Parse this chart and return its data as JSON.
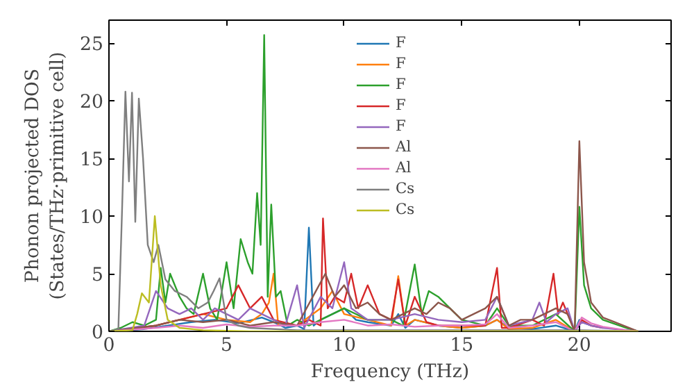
{
  "chart_data": {
    "type": "line",
    "xlabel": "Frequency (THz)",
    "ylabel": "Phonon projected DOS\n(States/THz·primitive cell)",
    "xlim": [
      0,
      23.9
    ],
    "ylim": [
      0,
      27
    ],
    "xticks": [
      0,
      5,
      10,
      15,
      20
    ],
    "yticks": [
      0,
      5,
      10,
      15,
      20,
      25
    ],
    "grid": false,
    "legend": "top",
    "line_style": "solid",
    "marker": "none",
    "series": [
      {
        "name": "F",
        "color": "#1f77b4",
        "x": [
          0,
          1.5,
          2.5,
          3.5,
          4.5,
          5.5,
          6.5,
          7.0,
          7.5,
          8.0,
          8.3,
          8.5,
          8.7,
          9.0,
          9.5,
          10,
          10.5,
          11,
          12,
          12.3,
          12.6,
          13,
          14,
          15,
          16,
          16.5,
          17,
          18,
          19,
          19.8,
          20.0,
          20.1,
          20.5
        ],
        "values": [
          0,
          0.2,
          0.5,
          0.8,
          1,
          0.7,
          1.2,
          0.8,
          0.3,
          0.5,
          0.2,
          9,
          0.5,
          1,
          1.5,
          2,
          1,
          0.8,
          0.5,
          1.5,
          0.3,
          1,
          0.5,
          0.3,
          0.5,
          1,
          0.3,
          0.2,
          0.5,
          0,
          1,
          0.8,
          0.5
        ]
      },
      {
        "name": "F",
        "color": "#ff7f0e",
        "x": [
          0,
          2,
          3,
          4,
          5,
          6,
          6.5,
          6.8,
          7.0,
          7.2,
          8,
          9,
          9.5,
          10,
          11,
          12,
          12.3,
          12.6,
          13,
          14,
          15,
          16,
          16.5,
          17,
          18,
          19,
          19.8
        ],
        "values": [
          0,
          0.5,
          1,
          1.5,
          1,
          0.8,
          1.5,
          2.5,
          5,
          0.5,
          0.5,
          2,
          3.5,
          1.5,
          1,
          0.5,
          4.8,
          0.5,
          1,
          0.5,
          0.3,
          0.5,
          1,
          0.2,
          0.3,
          1,
          0
        ]
      },
      {
        "name": "F",
        "color": "#2ca02c",
        "x": [
          0,
          0.5,
          1,
          1.5,
          2,
          2.2,
          2.4,
          2.6,
          3,
          3.3,
          3.6,
          4,
          4.3,
          4.6,
          5,
          5.3,
          5.6,
          5.9,
          6.1,
          6.3,
          6.45,
          6.6,
          6.75,
          6.9,
          7.1,
          7.3,
          7.6,
          8,
          8.5,
          9,
          9.5,
          10,
          11,
          12,
          12.5,
          13,
          13.3,
          13.6,
          14,
          14.5,
          15,
          16,
          16.5,
          17,
          18,
          19,
          19.8,
          20.0,
          20.2,
          20.5,
          21,
          22,
          22.5
        ],
        "values": [
          0,
          0.3,
          0.8,
          0.5,
          1,
          5.5,
          2.5,
          5,
          3,
          2,
          1.5,
          5,
          2,
          1,
          6,
          2,
          8,
          6,
          5,
          12,
          7.5,
          25.7,
          3,
          11,
          3,
          3.5,
          0.5,
          1,
          0.5,
          1,
          1.5,
          2,
          1,
          1,
          0.5,
          5.8,
          1.5,
          3.5,
          3,
          2,
          1,
          0.5,
          2,
          0.5,
          0.5,
          1.5,
          0,
          10.8,
          4,
          2,
          1,
          0.3,
          0
        ]
      },
      {
        "name": "F",
        "color": "#d62728",
        "x": [
          0,
          2,
          3,
          4,
          5,
          5.5,
          6,
          6.5,
          7,
          8,
          8.5,
          9,
          9.1,
          9.3,
          9.6,
          10,
          10.3,
          10.6,
          11,
          11.5,
          12,
          12.3,
          12.6,
          13,
          13.5,
          14,
          15,
          16,
          16.5,
          16.7,
          17,
          18,
          18.5,
          18.9,
          19.1,
          19.3,
          19.8,
          20.1,
          20.5,
          21
        ],
        "values": [
          0,
          0.5,
          1,
          1.5,
          2,
          4,
          2,
          3,
          1,
          0.5,
          1,
          0.5,
          9.8,
          2,
          3,
          2.5,
          5,
          2,
          4,
          1.5,
          1,
          4.5,
          0.5,
          3,
          0.8,
          0.5,
          0.5,
          0.5,
          5.5,
          0.3,
          0.3,
          1,
          0.5,
          5,
          1.5,
          2.5,
          0,
          1,
          0.5,
          0.3
        ]
      },
      {
        "name": "F",
        "color": "#9467bd",
        "x": [
          0,
          1.5,
          2,
          2.5,
          3,
          3.5,
          4,
          4.5,
          5,
          5.5,
          6,
          7,
          7.5,
          8,
          8.3,
          9,
          9.5,
          10,
          10.3,
          11,
          12,
          13,
          14,
          15,
          16,
          16.5,
          17,
          18,
          18.3,
          18.6,
          19,
          19.5,
          19.8,
          20.1,
          20.5,
          21,
          22,
          22.5
        ],
        "values": [
          0,
          0.5,
          3.5,
          2,
          1.5,
          2,
          1,
          2,
          1.5,
          1,
          2,
          1,
          0.5,
          4,
          0.3,
          3,
          2,
          6,
          2,
          1,
          1,
          1.5,
          1,
          0.8,
          1,
          3,
          0.5,
          1,
          2.5,
          0.8,
          1.5,
          2,
          0,
          0.8,
          0.5,
          0.3,
          0.1,
          0
        ]
      },
      {
        "name": "Al",
        "color": "#8c564b",
        "x": [
          0,
          2,
          3,
          4,
          5,
          6,
          7,
          8,
          8.8,
          9.2,
          9.6,
          10,
          10.5,
          11,
          11.5,
          12,
          12.5,
          13,
          13.5,
          14,
          14.5,
          15,
          15.5,
          16,
          16.5,
          17,
          17.5,
          18,
          18.5,
          19,
          19.5,
          19.8,
          20.0,
          20.2,
          20.5,
          21,
          21.5,
          22,
          22.5
        ],
        "values": [
          0,
          0.5,
          1,
          0.8,
          1,
          0.5,
          0.8,
          0.5,
          3.5,
          5,
          3,
          4,
          2,
          2.5,
          1.5,
          1,
          1.5,
          2,
          1.5,
          2.5,
          2,
          1,
          1.5,
          2,
          3,
          0.5,
          1,
          1,
          1.5,
          2,
          1.5,
          0,
          16.5,
          6,
          2.5,
          1.2,
          0.8,
          0.4,
          0
        ]
      },
      {
        "name": "Al",
        "color": "#e377c2",
        "x": [
          0,
          2,
          3,
          4,
          5,
          6,
          7,
          8,
          9,
          10,
          11,
          12,
          13,
          14,
          15,
          16,
          16.5,
          17,
          18,
          19,
          19.8,
          20.1,
          20.5,
          21,
          22,
          22.5
        ],
        "values": [
          0,
          0.3,
          0.5,
          0.3,
          0.6,
          0.4,
          0.5,
          0.5,
          0.8,
          1,
          0.5,
          0.6,
          0.4,
          0.5,
          0.5,
          0.6,
          1.5,
          0.3,
          0.5,
          0.8,
          0,
          1.2,
          0.7,
          0.4,
          0.1,
          0
        ]
      },
      {
        "name": "Cs",
        "color": "#7f7f7f",
        "x": [
          0,
          0.4,
          0.55,
          0.7,
          0.85,
          0.98,
          1.12,
          1.27,
          1.45,
          1.65,
          1.9,
          2.1,
          2.4,
          2.8,
          3.3,
          3.8,
          4.2,
          4.45,
          4.7,
          5,
          5.5,
          6,
          8,
          10,
          15,
          20,
          22.5
        ],
        "values": [
          0,
          0.2,
          10,
          20.8,
          13,
          20.7,
          9.5,
          20.2,
          15,
          7.5,
          6,
          7.5,
          4.5,
          3.5,
          3,
          2,
          2.5,
          3.5,
          4.6,
          1,
          0.5,
          0.3,
          0.1,
          0.1,
          0.1,
          0.1,
          0
        ]
      },
      {
        "name": "Cs",
        "color": "#bcbd22",
        "x": [
          0,
          1,
          1.2,
          1.4,
          1.7,
          1.95,
          2.2,
          2.5,
          3,
          4,
          6,
          10,
          15,
          20,
          22.5
        ],
        "values": [
          0,
          0.1,
          1.5,
          3.3,
          2.5,
          10,
          4,
          1,
          0.3,
          0.1,
          0,
          0,
          0,
          0,
          0
        ]
      }
    ]
  }
}
